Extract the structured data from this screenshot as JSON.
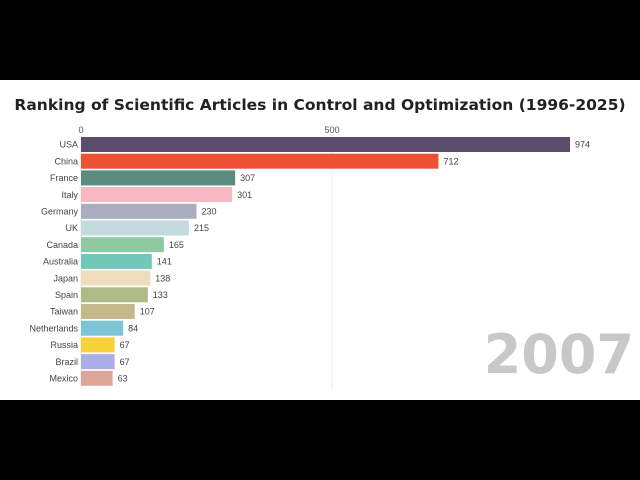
{
  "chart_data": {
    "type": "bar",
    "title": "Ranking of Scientific Articles in Control and Optimization (1996-2025)",
    "period_label": "2007",
    "orientation": "horizontal",
    "xticks": [
      0,
      500
    ],
    "xlim": [
      0,
      974
    ],
    "grid": true,
    "categories": [
      "USA",
      "China",
      "France",
      "Italy",
      "Germany",
      "UK",
      "Canada",
      "Australia",
      "Japan",
      "Spain",
      "Taiwan",
      "Netherlands",
      "Russia",
      "Brazil",
      "Mexico"
    ],
    "values": [
      974,
      712,
      307,
      301,
      230,
      215,
      165,
      141,
      138,
      133,
      107,
      84,
      67,
      67,
      63
    ],
    "colors": [
      "#5b4c6b",
      "#ef5134",
      "#5b8a7e",
      "#f7b8c3",
      "#a9adbf",
      "#c3dade",
      "#8ec9a0",
      "#72c8b8",
      "#efdcbc",
      "#adbc86",
      "#c3b98b",
      "#7cc5d6",
      "#f7d13c",
      "#aaaee6",
      "#d9a699"
    ]
  }
}
